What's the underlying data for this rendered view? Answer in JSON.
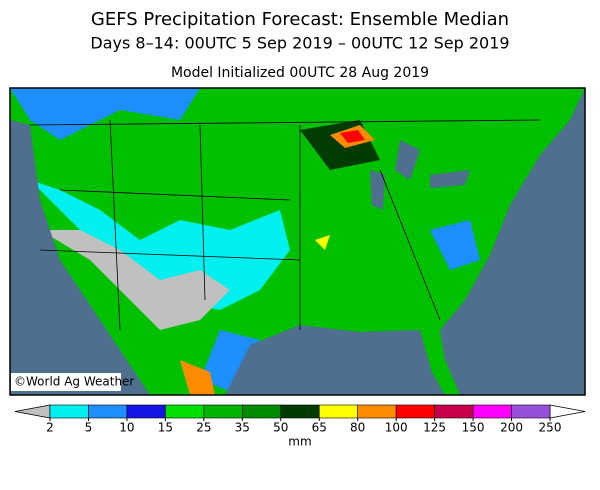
{
  "header": {
    "title": "GEFS Precipitation Forecast: Ensemble Median",
    "subtitle": "Days 8–14: 00UTC 5 Sep 2019 – 00UTC 12 Sep 2019",
    "initialized": "Model Initialized 00UTC 28 Aug 2019"
  },
  "map": {
    "credit": "©World Ag Weather"
  },
  "legend": {
    "ticks": [
      2,
      5,
      10,
      15,
      25,
      35,
      50,
      65,
      80,
      100,
      125,
      150,
      200,
      250
    ],
    "colors": [
      "#00f0f0",
      "#1e8fff",
      "#1414e6",
      "#00e000",
      "#00b400",
      "#008c00",
      "#003c00",
      "#ffff00",
      "#ff8c00",
      "#ff0000",
      "#c8004c",
      "#ff00ff",
      "#9650dc"
    ],
    "under_color": "#c0c0c0",
    "over_color": "#ffffff",
    "unit": "mm"
  }
}
